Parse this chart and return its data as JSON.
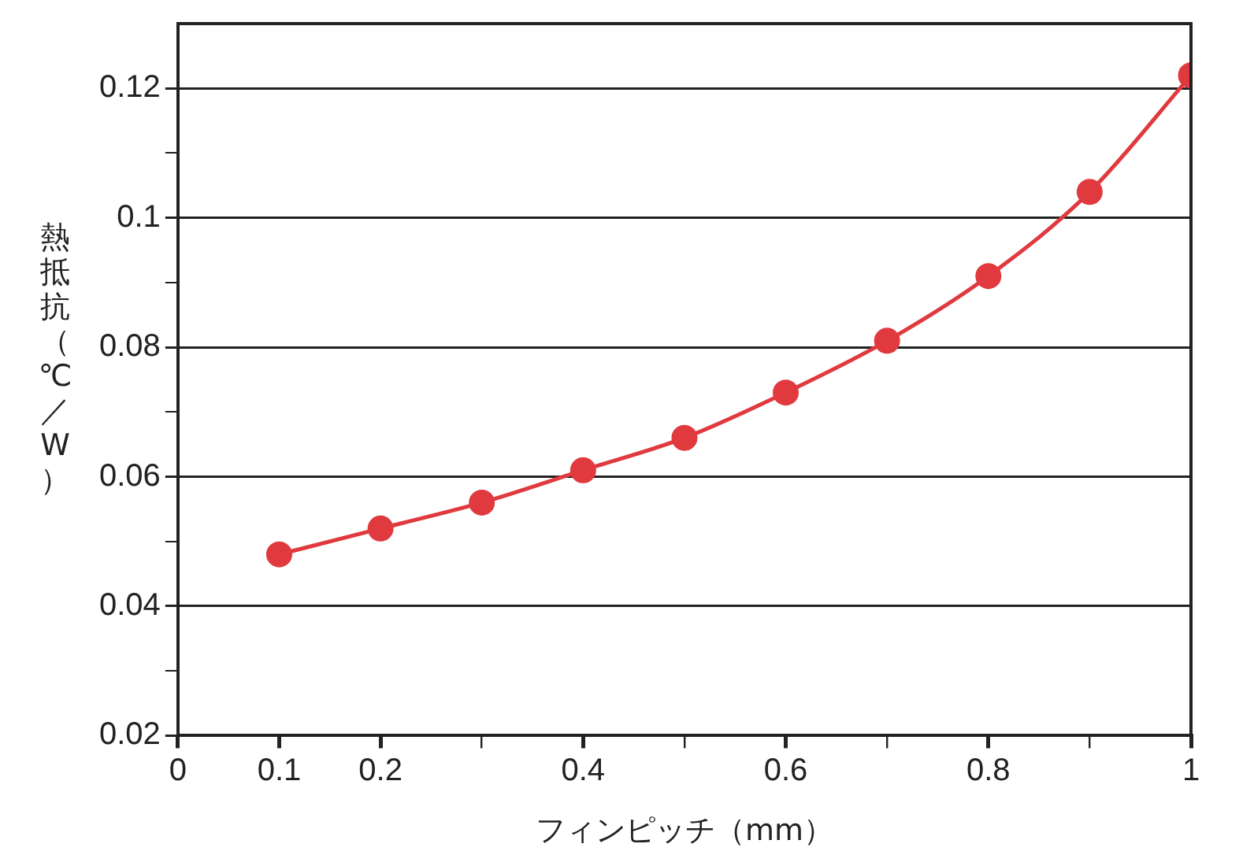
{
  "chart_data": {
    "type": "line",
    "xlabel": "フィンピッチ（mm）",
    "ylabel": "熱抵抗（℃／W）",
    "x": [
      0.1,
      0.2,
      0.3,
      0.4,
      0.5,
      0.6,
      0.7,
      0.8,
      0.9,
      1
    ],
    "series": [
      {
        "color": "#e0393e",
        "values": [
          0.048,
          0.052,
          0.056,
          0.061,
          0.066,
          0.073,
          0.081,
          0.091,
          0.104,
          0.122
        ]
      }
    ],
    "xlim": [
      0,
      1
    ],
    "xticks": [
      0,
      0.1,
      0.2,
      {
        "value": 0.3,
        "label": null
      },
      0.4,
      {
        "value": 0.5,
        "label": null
      },
      0.6,
      {
        "value": 0.7,
        "label": null
      },
      0.8,
      {
        "value": 0.9,
        "label": null
      },
      1
    ],
    "ylim": [
      0.02,
      0.13
    ],
    "yticks": [
      0.02,
      {
        "value": 0.03,
        "label": null
      },
      0.04,
      {
        "value": 0.05,
        "label": null
      },
      0.06,
      {
        "value": 0.07,
        "label": null
      },
      0.08,
      {
        "value": 0.09,
        "label": null
      },
      0.1,
      {
        "value": 0.11,
        "label": null
      },
      0.12
    ],
    "grid": "y",
    "legend": false,
    "marker": "circle",
    "line_style": "solid"
  }
}
